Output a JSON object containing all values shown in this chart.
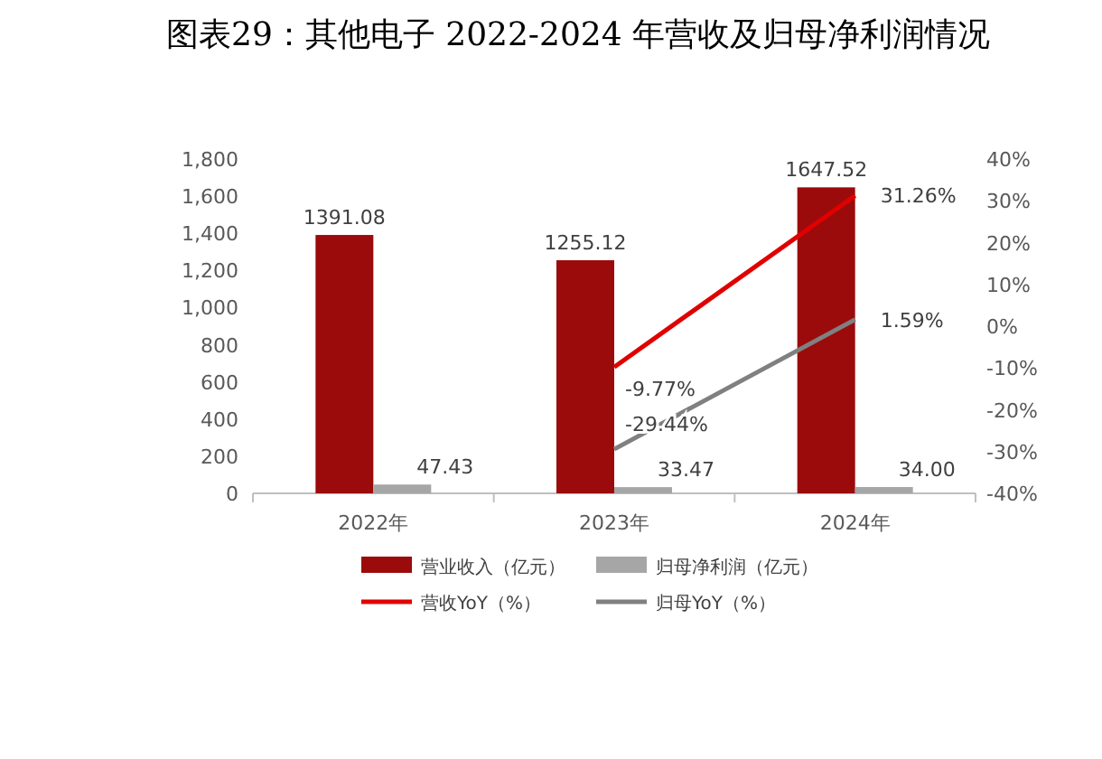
{
  "chart_data": {
    "type": "bar",
    "title": "图表29：其他电子  2022-2024 年营收及归母净利润情况",
    "categories": [
      "2022年",
      "2023年",
      "2024年"
    ],
    "series": [
      {
        "name": "营业收入（亿元）",
        "color": "#9b0b0b",
        "values": [
          1391.08,
          1255.12,
          1647.52
        ],
        "value_labels": [
          "1391.08",
          "1255.12",
          "1647.52"
        ]
      },
      {
        "name": "归母净利润（亿元）",
        "color": "#a6a6a6",
        "values": [
          47.43,
          33.47,
          34.0
        ],
        "value_labels": [
          "47.43",
          "33.47",
          "34.00"
        ]
      },
      {
        "name": "营收YoY（%）",
        "type": "line",
        "axis": "y2",
        "color": "#e00000",
        "values": [
          null,
          -9.77,
          31.26
        ],
        "value_labels": [
          null,
          "-9.77%",
          "31.26%"
        ]
      },
      {
        "name": "归母YoY（%）",
        "type": "line",
        "axis": "y2",
        "color": "#808080",
        "values": [
          null,
          -29.44,
          1.59
        ],
        "value_labels": [
          null,
          "-29.44%",
          "1.59%"
        ]
      }
    ],
    "ylim": [
      0,
      1800
    ],
    "yticks": [
      0,
      200,
      400,
      600,
      800,
      {
        "value": 1000,
        "label": "1,000"
      },
      {
        "value": 1200,
        "label": "1,200"
      },
      {
        "value": 1400,
        "label": "1,400"
      },
      {
        "value": 1600,
        "label": "1,600"
      },
      {
        "value": 1800,
        "label": "1,800"
      }
    ],
    "y2lim": [
      -40,
      40
    ],
    "y2ticks": [
      {
        "value": -40,
        "label": "-40%"
      },
      {
        "value": -30,
        "label": "-30%"
      },
      {
        "value": -20,
        "label": "-20%"
      },
      {
        "value": -10,
        "label": "-10%"
      },
      {
        "value": 0,
        "label": "0%"
      },
      {
        "value": 10,
        "label": "10%"
      },
      {
        "value": 20,
        "label": "20%"
      },
      {
        "value": 30,
        "label": "30%"
      },
      {
        "value": 40,
        "label": "40%"
      }
    ],
    "legend": "bottom"
  }
}
